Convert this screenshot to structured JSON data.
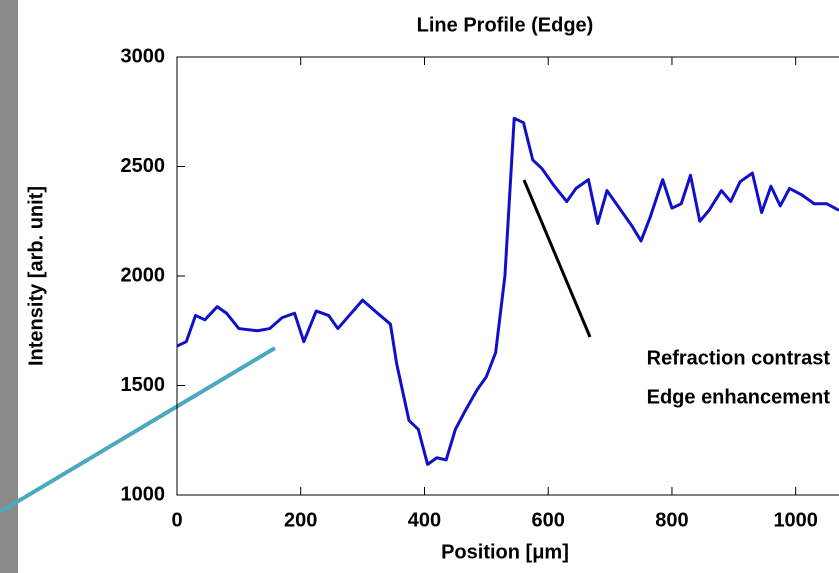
{
  "chart_data": {
    "type": "line",
    "title": "Line Profile (Edge)",
    "x_label": "Position [μm]",
    "y_label": "Intensity [arb. unit]",
    "annotation": [
      "Refraction contrast",
      "Edge enhancement"
    ],
    "xlim": [
      0,
      1070
    ],
    "ylim": [
      1000,
      3000
    ],
    "xticks": [
      0,
      200,
      400,
      600,
      800,
      1000
    ],
    "yticks": [
      1000,
      1500,
      2000,
      2500,
      3000
    ],
    "x": [
      0,
      15,
      30,
      45,
      65,
      80,
      100,
      130,
      150,
      170,
      190,
      205,
      225,
      245,
      260,
      300,
      320,
      345,
      355,
      375,
      390,
      405,
      420,
      435,
      450,
      465,
      485,
      500,
      515,
      530,
      545,
      560,
      575,
      590,
      610,
      630,
      645,
      665,
      680,
      695,
      715,
      735,
      750,
      765,
      785,
      800,
      815,
      830,
      845,
      860,
      880,
      895,
      910,
      930,
      945,
      960,
      975,
      990,
      1010,
      1030,
      1050,
      1070
    ],
    "series": [
      {
        "color": "#1010c8",
        "values": [
          1680,
          1700,
          1820,
          1800,
          1860,
          1830,
          1760,
          1750,
          1760,
          1810,
          1830,
          1700,
          1840,
          1820,
          1760,
          1890,
          1840,
          1780,
          1600,
          1340,
          1300,
          1140,
          1170,
          1160,
          1300,
          1380,
          1480,
          1540,
          1650,
          2000,
          2720,
          2700,
          2530,
          2490,
          2410,
          2340,
          2400,
          2440,
          2240,
          2390,
          2310,
          2230,
          2160,
          2270,
          2440,
          2310,
          2330,
          2460,
          2250,
          2300,
          2390,
          2340,
          2430,
          2470,
          2290,
          2410,
          2320,
          2400,
          2370,
          2330,
          2330,
          2300
        ]
      }
    ]
  }
}
